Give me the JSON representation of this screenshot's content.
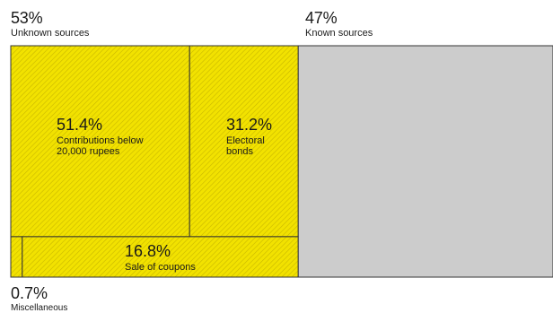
{
  "chart_data": {
    "type": "treemap",
    "groups": [
      {
        "name": "Unknown sources",
        "value_label": "53%",
        "value": 53,
        "color": "#f2e200",
        "hatched": true,
        "children": [
          {
            "name": "Contributions below 20,000 rupees",
            "name_lines": [
              "Contributions below",
              "20,000 rupees"
            ],
            "value_label": "51.4%",
            "value": 51.4
          },
          {
            "name": "Electoral bonds",
            "name_lines": [
              "Electoral",
              "bonds"
            ],
            "value_label": "31.2%",
            "value": 31.2
          },
          {
            "name": "Sale of coupons",
            "name_lines": [
              "Sale of coupons"
            ],
            "value_label": "16.8%",
            "value": 16.8
          },
          {
            "name": "Miscellaneous",
            "name_lines": [
              "Miscellaneous"
            ],
            "value_label": "0.7%",
            "value": 0.7
          }
        ]
      },
      {
        "name": "Known sources",
        "value_label": "47%",
        "value": 47,
        "color": "#cccccc",
        "hatched": false,
        "children": []
      }
    ]
  }
}
